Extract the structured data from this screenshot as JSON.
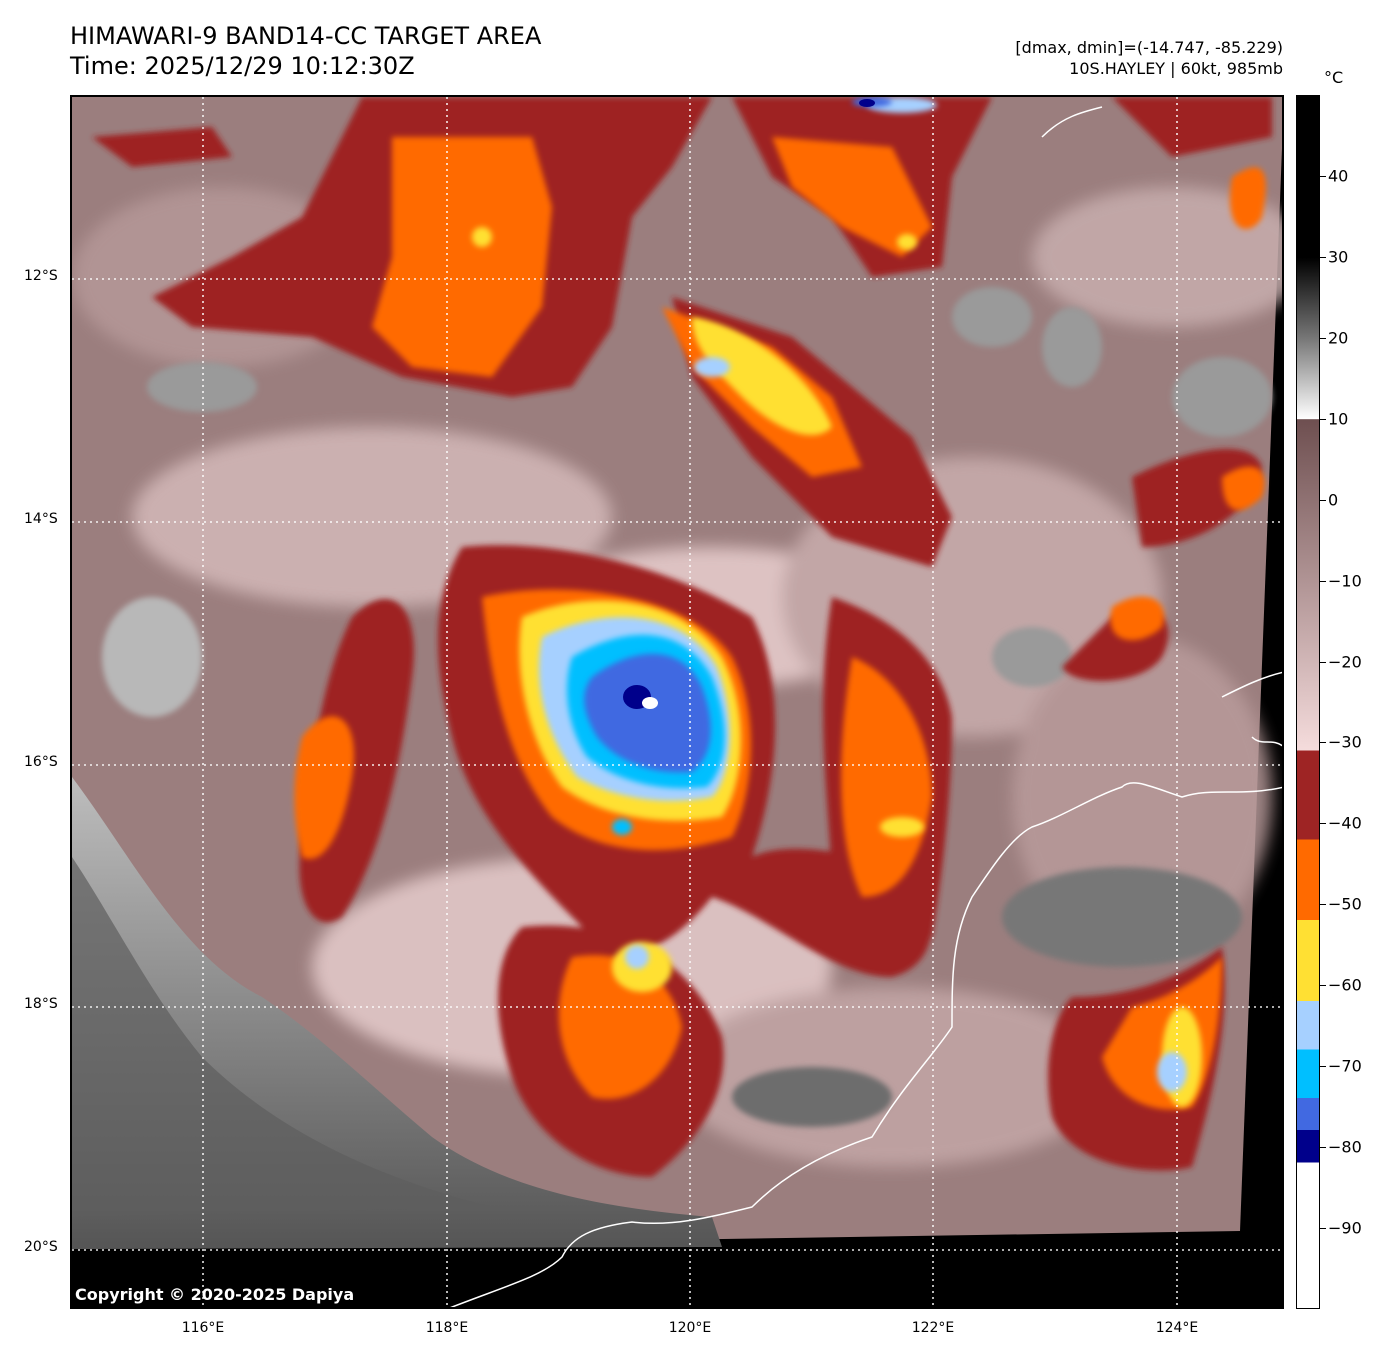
{
  "header": {
    "title_line1": "HIMAWARI-9 BAND14-CC TARGET AREA",
    "title_line2": "Time: 2025/12/29 10:12:30Z",
    "meta_line1": "[dmax, dmin]=(-14.747, -85.229)",
    "meta_line2": "10S.HAYLEY | 60kt, 985mb"
  },
  "map": {
    "copyright": "Copyright © 2020-2025 Dapiya",
    "lat_labels": [
      "12°S",
      "14°S",
      "16°S",
      "18°S",
      "20°S"
    ],
    "lon_labels": [
      "116°E",
      "118°E",
      "120°E",
      "122°E",
      "124°E"
    ]
  },
  "colorbar": {
    "unit": "°C",
    "ticks": [
      "40",
      "30",
      "20",
      "10",
      "0",
      "−10",
      "−20",
      "−30",
      "−40",
      "−50",
      "−60",
      "−70",
      "−80",
      "−90"
    ],
    "colors": {
      "warm_black": "#000000",
      "warm_white": "#ffffff",
      "pink_brown_top": "#6e4f50",
      "pink_brown_bottom": "#f5dcdc",
      "dark_red": "#9e2424",
      "orange": "#ff6a00",
      "yellow": "#ffe033",
      "light_blue": "#a6d0ff",
      "cyan": "#00bfff",
      "royal_blue": "#4169e1",
      "navy": "#00008b",
      "cold_white": "#ffffff"
    }
  }
}
